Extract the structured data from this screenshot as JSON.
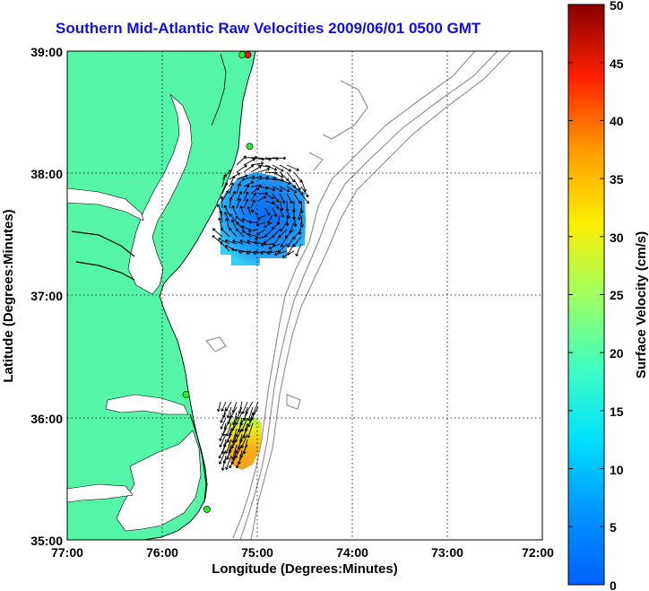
{
  "title": "Southern Mid-Atlantic Raw Velocities 2009/06/01 0500 GMT",
  "x_axis": {
    "label": "Longitude (Degrees:Minutes)",
    "ticks": [
      "77:00",
      "76:00",
      "75:00",
      "74:00",
      "73:00",
      "72:00"
    ]
  },
  "y_axis": {
    "label": "Latitude (Degrees:Minutes)",
    "ticks": [
      "39:00",
      "38:00",
      "37:00",
      "36:00",
      "35:00"
    ]
  },
  "colorbar": {
    "label": "Surface Velocity (cm/s)",
    "ticks": [
      "50",
      "45",
      "40",
      "35",
      "30",
      "25",
      "20",
      "15",
      "10",
      "5",
      "0"
    ],
    "range": [
      0,
      50
    ],
    "colormap": "jet"
  },
  "colors": {
    "title": "#1010e0",
    "land": "#55f5a8",
    "water": "#ffffff",
    "bathymetry": "#8c8c8c",
    "grid": "#000000",
    "site_marker": "#2ee82e",
    "site_marker_alt": "#ee1010"
  },
  "map": {
    "lon_range": [
      -77,
      -72
    ],
    "lat_range": [
      35,
      39
    ],
    "grid": "dotted",
    "stations": [
      {
        "lon": -75.1,
        "lat": 38.97,
        "color": "#ee1010"
      },
      {
        "lon": -75.16,
        "lat": 38.97,
        "color": "#2ee82e"
      },
      {
        "lon": -75.08,
        "lat": 38.22,
        "color": "#2ee82e"
      },
      {
        "lon": -75.75,
        "lat": 36.19,
        "color": "#2ee82e"
      },
      {
        "lon": -75.53,
        "lat": 35.25,
        "color": "#2ee82e"
      }
    ],
    "velocity_regions": [
      {
        "name": "northern",
        "center": [
          -74.97,
          37.7
        ],
        "speed_range_cms": [
          5,
          11
        ]
      },
      {
        "name": "southern",
        "center": [
          -75.05,
          35.95
        ],
        "speed_range_cms": [
          17,
          34
        ]
      }
    ]
  }
}
